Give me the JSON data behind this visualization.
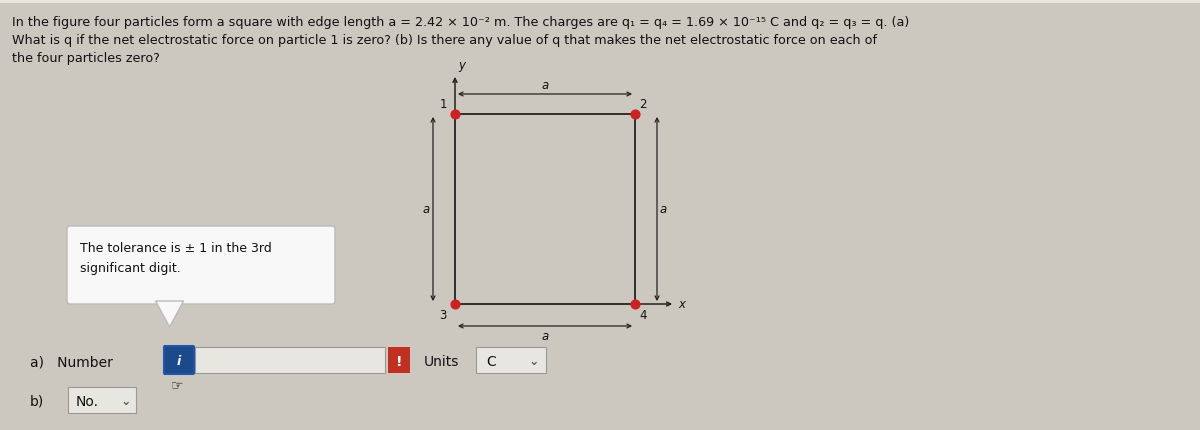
{
  "bg_color": "#ccc8c0",
  "top_bg_color": "#f0eeea",
  "title_text_line1": "In the figure four particles form a square with edge length a = 2.42 × 10⁻² m. The charges are q₁ = q₄ = 1.69 × 10⁻¹⁵ C and q₂ = q₃ = q. (a)",
  "title_text_line2": "What is q if the net electrostatic force on particle 1 is zero? (b) Is there any value of q that makes the net electrostatic force on each of",
  "title_text_line3": "the four particles zero?",
  "tolerance_text": "The tolerance is ± 1 in the 3rd\nsignificant digit.",
  "answer_a_label": "a)   Number",
  "answer_b_label": "b)",
  "answer_b_value": "No.",
  "units_label": "Units",
  "units_value": "C",
  "square_color": "#222222",
  "dot_color": "#cc2222",
  "input_box_blue_color": "#1a4a8a",
  "input_box_red_color": "#c03020",
  "tooltip_box_color": "#f8f8f8",
  "fig_width": 12.0,
  "fig_height": 4.31
}
